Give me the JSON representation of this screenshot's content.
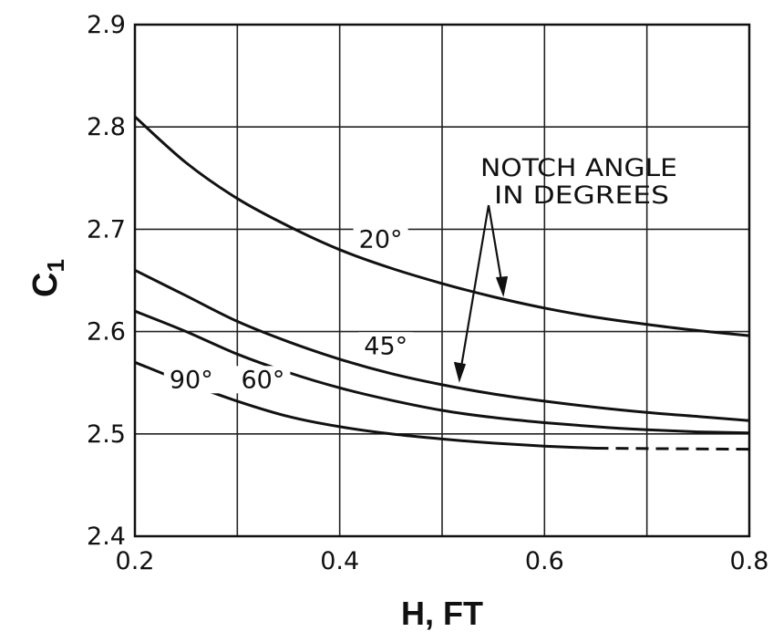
{
  "chart_data": {
    "type": "line",
    "xlabel": "H, FT",
    "ylabel": "C",
    "ylabel_subscript": "1",
    "xlim": [
      0.2,
      0.8
    ],
    "ylim": [
      2.4,
      2.9
    ],
    "x_ticks": [
      0.2,
      0.4,
      0.6,
      0.8
    ],
    "x_tick_labels": [
      "0.2",
      "0.4",
      "0.6",
      "0.8"
    ],
    "y_ticks": [
      2.4,
      2.5,
      2.6,
      2.7,
      2.8,
      2.9
    ],
    "y_tick_labels": [
      "2.4",
      "2.5",
      "2.6",
      "2.7",
      "2.8",
      "2.9"
    ],
    "x_gridlines": [
      0.2,
      0.3,
      0.4,
      0.5,
      0.6,
      0.7,
      0.8
    ],
    "y_gridlines": [
      2.4,
      2.5,
      2.6,
      2.7,
      2.8,
      2.9
    ],
    "grid": true,
    "annotation": [
      "NOTCH ANGLE",
      "IN DEGREES"
    ],
    "series": [
      {
        "name": "20°",
        "x": [
          0.2,
          0.25,
          0.3,
          0.35,
          0.4,
          0.45,
          0.5,
          0.55,
          0.6,
          0.65,
          0.7,
          0.75,
          0.8
        ],
        "y": [
          2.81,
          2.765,
          2.73,
          2.703,
          2.68,
          2.662,
          2.647,
          2.634,
          2.623,
          2.614,
          2.607,
          2.601,
          2.596
        ]
      },
      {
        "name": "45°",
        "x": [
          0.2,
          0.25,
          0.3,
          0.35,
          0.4,
          0.45,
          0.5,
          0.55,
          0.6,
          0.65,
          0.7,
          0.75,
          0.8
        ],
        "y": [
          2.66,
          2.635,
          2.61,
          2.59,
          2.573,
          2.559,
          2.548,
          2.539,
          2.532,
          2.526,
          2.521,
          2.517,
          2.513
        ]
      },
      {
        "name": "60°",
        "x": [
          0.2,
          0.25,
          0.3,
          0.35,
          0.4,
          0.45,
          0.5,
          0.55,
          0.6,
          0.65,
          0.7,
          0.75,
          0.8
        ],
        "y": [
          2.62,
          2.6,
          2.578,
          2.56,
          2.545,
          2.533,
          2.523,
          2.516,
          2.511,
          2.507,
          2.504,
          2.502,
          2.501
        ]
      },
      {
        "name": "90°",
        "x": [
          0.2,
          0.25,
          0.3,
          0.35,
          0.4,
          0.45,
          0.5,
          0.55,
          0.6,
          0.65
        ],
        "y": [
          2.57,
          2.55,
          2.532,
          2.517,
          2.507,
          2.5,
          2.495,
          2.491,
          2.488,
          2.486
        ],
        "dashed_extension": {
          "x": [
            0.65,
            0.8
          ],
          "y": [
            2.486,
            2.485
          ]
        }
      }
    ]
  }
}
